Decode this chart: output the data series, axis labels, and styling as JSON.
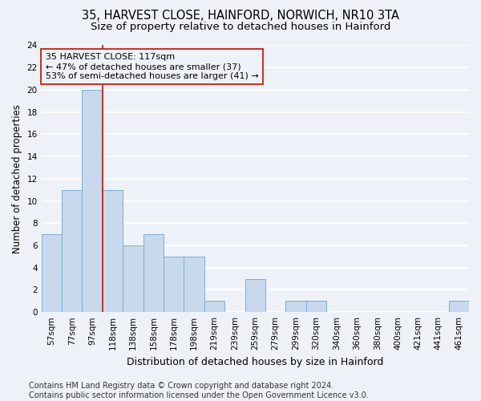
{
  "title_line1": "35, HARVEST CLOSE, HAINFORD, NORWICH, NR10 3TA",
  "title_line2": "Size of property relative to detached houses in Hainford",
  "xlabel": "Distribution of detached houses by size in Hainford",
  "ylabel": "Number of detached properties",
  "categories": [
    "57sqm",
    "77sqm",
    "97sqm",
    "118sqm",
    "138sqm",
    "158sqm",
    "178sqm",
    "198sqm",
    "219sqm",
    "239sqm",
    "259sqm",
    "279sqm",
    "299sqm",
    "320sqm",
    "340sqm",
    "360sqm",
    "380sqm",
    "400sqm",
    "421sqm",
    "441sqm",
    "461sqm"
  ],
  "values": [
    7,
    11,
    20,
    11,
    6,
    7,
    5,
    5,
    1,
    0,
    3,
    0,
    1,
    1,
    0,
    0,
    0,
    0,
    0,
    0,
    1
  ],
  "bar_color": "#c8d9ed",
  "bar_edge_color": "#7aadd4",
  "vline_index": 2,
  "vline_color": "#c0392b",
  "annotation_line1": "35 HARVEST CLOSE: 117sqm",
  "annotation_line2": "← 47% of detached houses are smaller (37)",
  "annotation_line3": "53% of semi-detached houses are larger (41) →",
  "annotation_box_color": "#c0392b",
  "ylim": [
    0,
    24
  ],
  "yticks": [
    0,
    2,
    4,
    6,
    8,
    10,
    12,
    14,
    16,
    18,
    20,
    22,
    24
  ],
  "footer_text": "Contains HM Land Registry data © Crown copyright and database right 2024.\nContains public sector information licensed under the Open Government Licence v3.0.",
  "background_color": "#eef2f8",
  "grid_color": "#ffffff",
  "title_fontsize": 10.5,
  "subtitle_fontsize": 9.5,
  "tick_fontsize": 7.5,
  "ylabel_fontsize": 8.5,
  "xlabel_fontsize": 9,
  "annotation_fontsize": 8,
  "footer_fontsize": 7
}
